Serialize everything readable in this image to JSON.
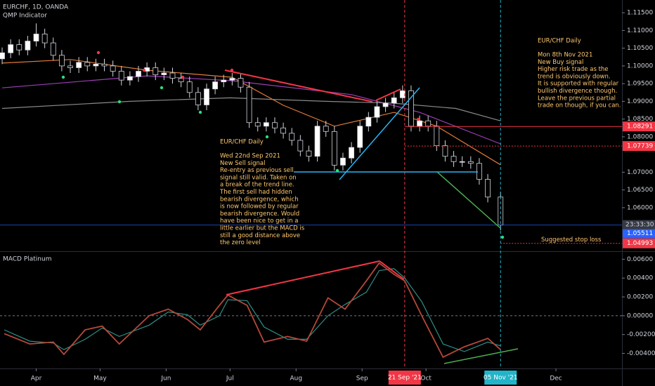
{
  "chart_data": [
    {
      "type": "candlestick",
      "title": "EURCHF, 1D, OANDA",
      "subtitle": "QMP Indicator",
      "x": [
        "2021-03-16",
        "2021-03-20",
        "2021-03-24",
        "2021-03-28",
        "2021-04-01",
        "2021-04-05",
        "2021-04-09",
        "2021-04-13",
        "2021-04-17",
        "2021-04-21",
        "2021-04-25",
        "2021-04-29",
        "2021-05-03",
        "2021-05-07",
        "2021-05-11",
        "2021-05-15",
        "2021-05-19",
        "2021-05-23",
        "2021-05-27",
        "2021-05-31",
        "2021-06-04",
        "2021-06-08",
        "2021-06-12",
        "2021-06-16",
        "2021-06-20",
        "2021-06-24",
        "2021-06-28",
        "2021-07-02",
        "2021-07-06",
        "2021-07-10",
        "2021-07-14",
        "2021-07-18",
        "2021-07-22",
        "2021-07-26",
        "2021-07-30",
        "2021-08-03",
        "2021-08-07",
        "2021-08-11",
        "2021-08-15",
        "2021-08-19",
        "2021-08-23",
        "2021-08-27",
        "2021-08-31",
        "2021-09-04",
        "2021-09-08",
        "2021-09-12",
        "2021-09-16",
        "2021-09-20",
        "2021-09-24",
        "2021-09-28",
        "2021-10-02",
        "2021-10-06",
        "2021-10-10",
        "2021-10-14",
        "2021-10-18",
        "2021-10-22",
        "2021-10-26",
        "2021-10-30",
        "2021-11-05"
      ],
      "open": [
        1.102,
        1.1037,
        1.106,
        1.1045,
        1.107,
        1.109,
        1.1065,
        1.103,
        1.1,
        1.0995,
        1.101,
        1.1,
        1.1005,
        1.1,
        1.0985,
        1.096,
        1.097,
        1.0985,
        1.0995,
        1.0975,
        1.098,
        1.0965,
        1.0955,
        1.0925,
        1.089,
        1.0935,
        1.0955,
        1.096,
        1.0965,
        1.094,
        1.084,
        1.083,
        1.084,
        1.0825,
        1.081,
        1.079,
        1.076,
        1.0745,
        1.083,
        1.0815,
        1.072,
        1.074,
        1.077,
        1.083,
        1.0855,
        1.0885,
        1.0895,
        1.091,
        1.093,
        1.083,
        1.0845,
        1.083,
        1.0775,
        1.0745,
        1.073,
        1.073,
        1.0725,
        1.068,
        1.063
      ],
      "high": [
        1.1052,
        1.1075,
        1.1075,
        1.1085,
        1.112,
        1.1105,
        1.108,
        1.1045,
        1.1015,
        1.1025,
        1.1025,
        1.102,
        1.102,
        1.1015,
        1.1,
        1.0985,
        1.1,
        1.101,
        1.101,
        1.0995,
        1.0995,
        1.098,
        1.097,
        1.094,
        1.095,
        1.097,
        1.0975,
        1.098,
        1.098,
        1.0955,
        1.0855,
        1.0855,
        1.0855,
        1.084,
        1.0825,
        1.0805,
        1.0775,
        1.0845,
        1.0845,
        1.083,
        1.0755,
        1.0785,
        1.0845,
        1.087,
        1.09,
        1.091,
        1.0925,
        1.0945,
        1.0945,
        1.086,
        1.086,
        1.0845,
        1.079,
        1.076,
        1.0745,
        1.0745,
        1.074,
        1.0695,
        1.0645
      ],
      "low": [
        1.1005,
        1.1022,
        1.103,
        1.103,
        1.1055,
        1.105,
        1.1015,
        1.0985,
        1.098,
        1.098,
        1.0985,
        1.0985,
        1.0985,
        1.097,
        1.0945,
        1.0945,
        1.0955,
        1.097,
        1.096,
        1.096,
        1.095,
        1.094,
        1.091,
        1.0875,
        1.0875,
        1.092,
        1.094,
        1.0945,
        1.0925,
        1.0825,
        1.0815,
        1.0815,
        1.081,
        1.0795,
        1.0775,
        1.0745,
        1.073,
        1.073,
        1.08,
        1.0705,
        1.0705,
        1.0725,
        1.0755,
        1.0815,
        1.084,
        1.087,
        1.088,
        1.0895,
        1.0815,
        1.0815,
        1.0815,
        1.076,
        1.073,
        1.0715,
        1.0715,
        1.071,
        1.0665,
        1.0615,
        1.0536
      ],
      "close": [
        1.1037,
        1.106,
        1.1045,
        1.107,
        1.109,
        1.1065,
        1.103,
        1.1,
        1.0995,
        1.101,
        1.1,
        1.1005,
        1.1,
        1.0985,
        1.096,
        1.097,
        1.0985,
        1.0995,
        1.0975,
        1.098,
        1.0965,
        1.0955,
        1.0925,
        1.089,
        1.0935,
        1.0955,
        1.096,
        1.0965,
        1.094,
        1.084,
        1.083,
        1.084,
        1.0825,
        1.081,
        1.079,
        1.076,
        1.0745,
        1.083,
        1.0815,
        1.072,
        1.074,
        1.077,
        1.083,
        1.0855,
        1.0885,
        1.0895,
        1.091,
        1.093,
        1.083,
        1.0845,
        1.083,
        1.0775,
        1.0745,
        1.073,
        1.073,
        1.0725,
        1.068,
        1.063,
        1.0551
      ],
      "up_color": "#ffffff",
      "down_color": "#000000",
      "xlim": [
        "2021-03-15",
        "2022-01-01"
      ],
      "ylim": [
        1.0479,
        1.1186
      ],
      "yticks": [
        {
          "value": 1.115,
          "label": "1.11500"
        },
        {
          "value": 1.11,
          "label": "1.11000"
        },
        {
          "value": 1.105,
          "label": "1.10500"
        },
        {
          "value": 1.1,
          "label": "1.10000"
        },
        {
          "value": 1.095,
          "label": "1.09500"
        },
        {
          "value": 1.09,
          "label": "1.09000"
        },
        {
          "value": 1.085,
          "label": "1.08500"
        },
        {
          "value": 1.08,
          "label": "1.08000"
        },
        {
          "value": 1.07,
          "label": "1.07000"
        },
        {
          "value": 1.065,
          "label": "1.06500"
        },
        {
          "value": 1.06,
          "label": "1.06000"
        }
      ],
      "moving_averages": [
        {
          "color": "#e07b39",
          "x": [
            "2021-03-16",
            "2021-04-17",
            "2021-05-23",
            "2021-07-02",
            "2021-07-26",
            "2021-08-19",
            "2021-09-16",
            "2021-10-06",
            "2021-11-05"
          ],
          "values": [
            1.1008,
            1.1018,
            1.0988,
            1.0968,
            1.0889,
            1.083,
            1.0869,
            1.083,
            1.0721
          ]
        },
        {
          "color": "#9c3fb5",
          "x": [
            "2021-03-16",
            "2021-05-23",
            "2021-07-02",
            "2021-08-27",
            "2021-09-28",
            "2021-11-05"
          ],
          "values": [
            1.0938,
            1.0972,
            1.0958,
            1.0919,
            1.0869,
            1.078
          ]
        },
        {
          "color": "#8a8a8a",
          "x": [
            "2021-03-16",
            "2021-05-15",
            "2021-07-01",
            "2021-08-15",
            "2021-09-15",
            "2021-10-15",
            "2021-11-05"
          ],
          "values": [
            1.088,
            1.09,
            1.091,
            1.09,
            1.0895,
            1.088,
            1.0845
          ]
        }
      ],
      "levels": [
        {
          "value": 1.08291,
          "color": "#f23645",
          "style": "solid"
        },
        {
          "value": 1.07739,
          "color": "#f23645",
          "style": "dotted"
        },
        {
          "value": 1.05511,
          "color": "#2962ff",
          "style": "solid"
        },
        {
          "value": 1.04993,
          "color": "#f23645",
          "style": "dotted"
        }
      ],
      "countdown": "23:33:30",
      "markers": [
        {
          "x": "2021-09-21",
          "label": "21 Sep '21",
          "color": "#f23645"
        },
        {
          "x": "2021-11-05",
          "label": "05 Nov '21",
          "color": "#22b4c8"
        }
      ],
      "stop_loss_label": "Suggested stop loss",
      "annotations": [
        {
          "title": "EUR/CHF Daily",
          "lines": [
            "Mon 8th Nov 2021",
            "New Buy signal",
            "Higher risk trade as the",
            "trend is obviously down.",
            "It is supported with regular",
            "bullish divergence though.",
            "Leave the previous partial",
            "trade on though, if you can."
          ]
        },
        {
          "title": "EUR/CHF Daily",
          "lines": [
            "Wed 22nd Sep 2021",
            "New Sell signal",
            "Re-entry as previous sell",
            "signal still valid. Taken on",
            "a break of the trend line.",
            "The first sell had hidden",
            "bearish divergence, which",
            "is now followed by regular",
            "bearish divergence. Would",
            "have been nice to get in a",
            "little earlier but the MACD is",
            "still a good distance above",
            "the zero level"
          ]
        }
      ]
    },
    {
      "type": "line",
      "title": "MACD Platinum",
      "x": [
        "2021-03-17",
        "2021-03-29",
        "2021-04-09",
        "2021-04-14",
        "2021-04-24",
        "2021-05-02",
        "2021-05-10",
        "2021-05-24",
        "2021-06-02",
        "2021-06-11",
        "2021-06-17",
        "2021-06-26",
        "2021-06-30",
        "2021-07-09",
        "2021-07-17",
        "2021-07-28",
        "2021-08-06",
        "2021-08-16",
        "2021-08-24",
        "2021-09-03",
        "2021-09-09",
        "2021-09-16",
        "2021-09-21",
        "2021-09-29",
        "2021-10-09",
        "2021-10-19",
        "2021-10-30",
        "2021-11-05"
      ],
      "series": [
        {
          "color": "#b5483a",
          "values": [
            -0.0019,
            -0.003,
            -0.0028,
            -0.0041,
            -0.0015,
            -0.0011,
            -0.003,
            0.0,
            0.0007,
            -0.0004,
            -0.0015,
            0.0011,
            0.0022,
            0.0011,
            -0.0028,
            -0.0022,
            -0.0027,
            0.0019,
            0.0007,
            0.0037,
            0.0056,
            0.0044,
            0.0037,
            0.0,
            -0.0044,
            -0.0033,
            -0.0024,
            -0.0036
          ]
        },
        {
          "color": "#2f8f86",
          "values": [
            -0.0015,
            -0.0027,
            -0.0029,
            -0.0036,
            -0.0025,
            -0.0013,
            -0.0022,
            -0.001,
            0.0004,
            0.0001,
            -0.001,
            0.0,
            0.0017,
            0.0016,
            -0.0012,
            -0.0025,
            -0.0025,
            0.0,
            0.0012,
            0.0025,
            0.0048,
            0.005,
            0.004,
            0.0015,
            -0.003,
            -0.0038,
            -0.0028,
            -0.0032
          ]
        }
      ],
      "xlim": [
        "2021-03-15",
        "2022-01-01"
      ],
      "ylim": [
        -0.0056,
        0.0067
      ],
      "yticks": [
        {
          "value": 0.006,
          "label": "0.00600"
        },
        {
          "value": 0.004,
          "label": "0.00400"
        },
        {
          "value": 0.002,
          "label": "0.00200"
        },
        {
          "value": 0,
          "label": "0.00000"
        },
        {
          "value": -0.002,
          "label": "-0.00200"
        },
        {
          "value": -0.004,
          "label": "-0.00400"
        }
      ],
      "xticks": [
        {
          "value": "2021-04-01",
          "label": "Apr"
        },
        {
          "value": "2021-05-01",
          "label": "May"
        },
        {
          "value": "2021-06-01",
          "label": "Jun"
        },
        {
          "value": "2021-07-01",
          "label": "Jul"
        },
        {
          "value": "2021-08-01",
          "label": "Aug"
        },
        {
          "value": "2021-09-01",
          "label": "Sep"
        },
        {
          "value": "2021-10-01",
          "label": "Oct"
        },
        {
          "value": "2021-12-01",
          "label": "Dec"
        }
      ],
      "zero_line": true
    }
  ]
}
